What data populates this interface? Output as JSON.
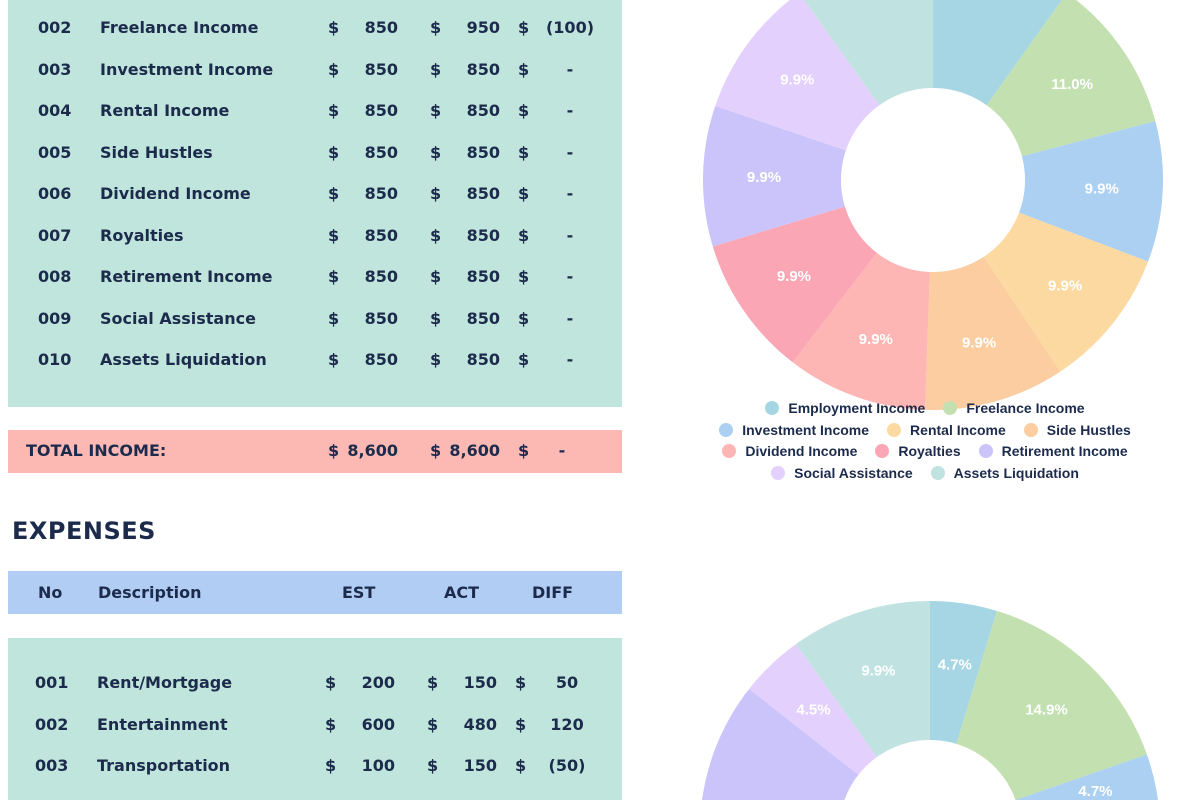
{
  "income": {
    "currency": "$",
    "rows": [
      {
        "no": "002",
        "desc": "Freelance Income",
        "est": "850",
        "act": "950",
        "diff": "(100)"
      },
      {
        "no": "003",
        "desc": "Investment Income",
        "est": "850",
        "act": "850",
        "diff": "-"
      },
      {
        "no": "004",
        "desc": "Rental Income",
        "est": "850",
        "act": "850",
        "diff": "-"
      },
      {
        "no": "005",
        "desc": "Side Hustles",
        "est": "850",
        "act": "850",
        "diff": "-"
      },
      {
        "no": "006",
        "desc": "Dividend Income",
        "est": "850",
        "act": "850",
        "diff": "-"
      },
      {
        "no": "007",
        "desc": "Royalties",
        "est": "850",
        "act": "850",
        "diff": "-"
      },
      {
        "no": "008",
        "desc": "Retirement Income",
        "est": "850",
        "act": "850",
        "diff": "-"
      },
      {
        "no": "009",
        "desc": "Social Assistance",
        "est": "850",
        "act": "850",
        "diff": "-"
      },
      {
        "no": "010",
        "desc": "Assets Liquidation",
        "est": "850",
        "act": "850",
        "diff": "-"
      }
    ],
    "total": {
      "label": "TOTAL INCOME:",
      "est": "8,600",
      "act": "8,600",
      "diff": "-"
    }
  },
  "expenses": {
    "heading": "EXPENSES",
    "columns": {
      "no": "No",
      "desc": "Description",
      "est": "EST",
      "act": "ACT",
      "diff": "DIFF"
    },
    "rows": [
      {
        "no": "001",
        "desc": "Rent/Mortgage",
        "est": "200",
        "act": "150",
        "diff": "50"
      },
      {
        "no": "002",
        "desc": "Entertainment",
        "est": "600",
        "act": "480",
        "diff": "120"
      },
      {
        "no": "003",
        "desc": "Transportation",
        "est": "100",
        "act": "150",
        "diff": "(50)"
      }
    ]
  },
  "chart_data": [
    {
      "type": "pie",
      "donut": true,
      "categories": [
        "Employment Income",
        "Freelance Income",
        "Investment Income",
        "Rental Income",
        "Side Hustles",
        "Dividend Income",
        "Royalties",
        "Retirement Income",
        "Social Assistance",
        "Assets Liquidation"
      ],
      "values": [
        9.9,
        11.0,
        9.9,
        9.9,
        9.9,
        9.9,
        9.9,
        9.9,
        9.9,
        9.9
      ],
      "data_labels": [
        null,
        "11.0%",
        "9.9%",
        "9.9%",
        "9.9%",
        "9.9%",
        "9.9%",
        "9.9%",
        "9.9%",
        null
      ],
      "colors": [
        "#a6d6e3",
        "#c2e0b0",
        "#acd0f2",
        "#fcd9a0",
        "#fccda0",
        "#fdb6b3",
        "#fba6b5",
        "#cbc4fb",
        "#e4d0fd",
        "#c0e2e0"
      ],
      "legend": "bottom"
    },
    {
      "type": "pie",
      "donut": true,
      "values": [
        4.7,
        14.9,
        4.7,
        null,
        null,
        null,
        null,
        null,
        4.5,
        9.9
      ],
      "data_labels": [
        "4.7%",
        "14.9%",
        "4.7%",
        null,
        null,
        null,
        null,
        null,
        "4.5%",
        "9.9%"
      ],
      "colors": [
        "#a6d6e3",
        "#c2e0b0",
        "#acd0f2",
        "#fcd9a0",
        "#fccda0",
        "#fdb6b3",
        "#fba6b5",
        "#cbc4fb",
        "#e4d0fd",
        "#c0e2e0"
      ]
    }
  ]
}
